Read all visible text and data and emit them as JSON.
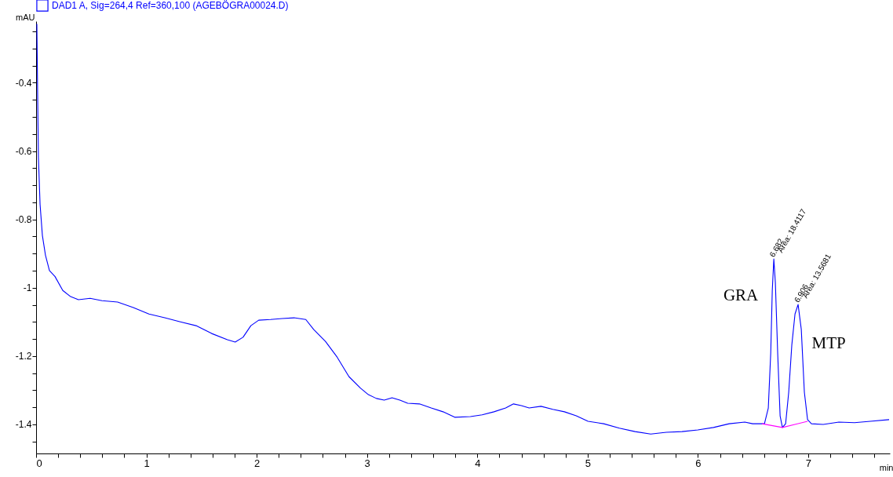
{
  "chart_data": {
    "type": "line",
    "xlabel": "min",
    "ylabel": "mAU",
    "xlim": [
      0,
      7.74
    ],
    "ylim": [
      -1.485,
      -0.22
    ],
    "xticks": [
      0,
      {
        "value": 0.2,
        "label": null
      },
      {
        "value": 0.4,
        "label": null
      },
      {
        "value": 0.6,
        "label": null
      },
      {
        "value": 0.8,
        "label": null
      },
      1,
      {
        "value": 1.2,
        "label": null
      },
      {
        "value": 1.4,
        "label": null
      },
      {
        "value": 1.6,
        "label": null
      },
      {
        "value": 1.8,
        "label": null
      },
      2,
      {
        "value": 2.2,
        "label": null
      },
      {
        "value": 2.4,
        "label": null
      },
      {
        "value": 2.6,
        "label": null
      },
      {
        "value": 2.8,
        "label": null
      },
      3,
      {
        "value": 3.2,
        "label": null
      },
      {
        "value": 3.4,
        "label": null
      },
      {
        "value": 3.6,
        "label": null
      },
      {
        "value": 3.8,
        "label": null
      },
      4,
      {
        "value": 4.2,
        "label": null
      },
      {
        "value": 4.4,
        "label": null
      },
      {
        "value": 4.6,
        "label": null
      },
      {
        "value": 4.8,
        "label": null
      },
      5,
      {
        "value": 5.2,
        "label": null
      },
      {
        "value": 5.4,
        "label": null
      },
      {
        "value": 5.6,
        "label": null
      },
      {
        "value": 5.8,
        "label": null
      },
      6,
      {
        "value": 6.2,
        "label": null
      },
      {
        "value": 6.4,
        "label": null
      },
      {
        "value": 6.6,
        "label": null
      },
      {
        "value": 6.8,
        "label": null
      },
      7,
      {
        "value": 7.2,
        "label": null
      },
      {
        "value": 7.4,
        "label": null
      },
      {
        "value": 7.6,
        "label": null
      }
    ],
    "yticks": [
      {
        "value": -0.25,
        "label": null
      },
      {
        "value": -0.3,
        "label": null
      },
      {
        "value": -0.35,
        "label": null
      },
      -0.4,
      {
        "value": -0.45,
        "label": null
      },
      {
        "value": -0.5,
        "label": null
      },
      {
        "value": -0.55,
        "label": null
      },
      -0.6,
      {
        "value": -0.65,
        "label": null
      },
      {
        "value": -0.7,
        "label": null
      },
      {
        "value": -0.75,
        "label": null
      },
      -0.8,
      {
        "value": -0.85,
        "label": null
      },
      {
        "value": -0.9,
        "label": null
      },
      {
        "value": -0.95,
        "label": null
      },
      -1,
      {
        "value": -1.05,
        "label": null
      },
      {
        "value": -1.1,
        "label": null
      },
      {
        "value": -1.15,
        "label": null
      },
      -1.2,
      {
        "value": -1.25,
        "label": null
      },
      {
        "value": -1.3,
        "label": null
      },
      {
        "value": -1.35,
        "label": null
      },
      -1.4,
      {
        "value": -1.45,
        "label": null
      }
    ],
    "legend": "top left",
    "line_style": "solid",
    "marker": "none",
    "series": [
      {
        "name": "DAD1 A, Sig=264,4 Ref=360,100 (AGEBÖGRA00024.D)",
        "color": "#0000ff",
        "x": [
          0.007,
          0.014,
          0.021,
          0.036,
          0.057,
          0.085,
          0.121,
          0.171,
          0.242,
          0.313,
          0.384,
          0.49,
          0.597,
          0.739,
          0.881,
          1.023,
          1.166,
          1.308,
          1.45,
          1.592,
          1.734,
          1.805,
          1.876,
          1.947,
          2.018,
          2.125,
          2.232,
          2.338,
          2.445,
          2.516,
          2.623,
          2.729,
          2.836,
          2.942,
          3.013,
          3.085,
          3.156,
          3.227,
          3.298,
          3.369,
          3.475,
          3.582,
          3.689,
          3.795,
          3.937,
          4.044,
          4.151,
          4.257,
          4.328,
          4.399,
          4.47,
          4.577,
          4.684,
          4.79,
          4.897,
          5.004,
          5.146,
          5.288,
          5.43,
          5.572,
          5.714,
          5.856,
          5.999,
          6.141,
          6.283,
          6.425,
          6.496,
          6.603,
          6.638,
          6.66,
          6.674,
          6.688,
          6.702,
          6.723,
          6.745,
          6.766,
          6.795,
          6.823,
          6.851,
          6.88,
          6.908,
          6.937,
          6.965,
          6.994,
          7.029,
          7.136,
          7.278,
          7.42,
          7.562,
          7.733
        ],
        "values": [
          -0.228,
          -0.434,
          -0.618,
          -0.756,
          -0.847,
          -0.905,
          -0.95,
          -0.967,
          -1.008,
          -1.026,
          -1.035,
          -1.031,
          -1.038,
          -1.042,
          -1.058,
          -1.077,
          -1.088,
          -1.1,
          -1.111,
          -1.134,
          -1.152,
          -1.159,
          -1.145,
          -1.111,
          -1.095,
          -1.093,
          -1.09,
          -1.088,
          -1.093,
          -1.122,
          -1.157,
          -1.203,
          -1.26,
          -1.294,
          -1.313,
          -1.324,
          -1.329,
          -1.322,
          -1.329,
          -1.338,
          -1.34,
          -1.352,
          -1.363,
          -1.379,
          -1.377,
          -1.372,
          -1.363,
          -1.352,
          -1.34,
          -1.345,
          -1.352,
          -1.347,
          -1.356,
          -1.363,
          -1.375,
          -1.391,
          -1.398,
          -1.411,
          -1.421,
          -1.428,
          -1.423,
          -1.421,
          -1.416,
          -1.409,
          -1.398,
          -1.393,
          -1.398,
          -1.398,
          -1.352,
          -1.191,
          -1.008,
          -0.916,
          -0.985,
          -1.191,
          -1.375,
          -1.409,
          -1.398,
          -1.306,
          -1.168,
          -1.077,
          -1.049,
          -1.122,
          -1.306,
          -1.386,
          -1.398,
          -1.4,
          -1.393,
          -1.395,
          -1.391,
          -1.386
        ]
      },
      {
        "color": "#ff00ff",
        "x": [
          6.581,
          6.766,
          6.994
        ],
        "values": [
          -1.398,
          -1.409,
          -1.391
        ]
      }
    ],
    "annotations": [
      {
        "text": "6.682",
        "x": 6.682,
        "y": -0.916
      },
      "Area: 18.4117",
      {
        "text": "6.906",
        "x": 6.906,
        "y": -1.049
      },
      "Area: 13.5681",
      {
        "text": "GRA",
        "x": 6.688,
        "y": -0.916
      },
      {
        "text": "MTP",
        "x": 6.908,
        "y": -1.049
      }
    ]
  }
}
